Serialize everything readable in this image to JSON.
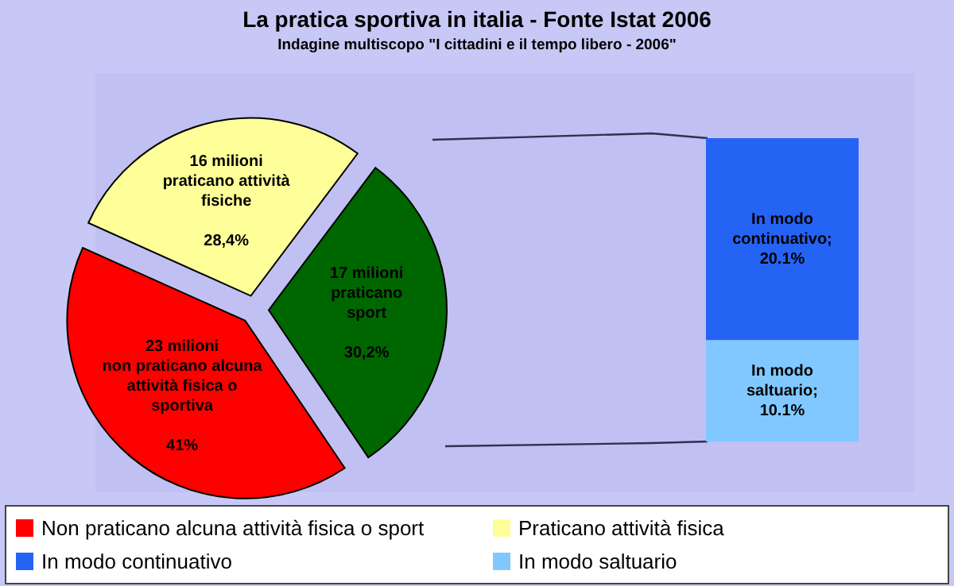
{
  "chart_data": [
    {
      "type": "pie",
      "title": "La pratica sportiva in italia - Fonte Istat 2006",
      "subtitle": "Indagine multiscopo \"I cittadini e il tempo libero - 2006\"",
      "categories": [
        "Non praticano alcuna attività fisica o sport",
        "Praticano attività fisica",
        null
      ],
      "values": [
        41,
        28.4,
        30.2
      ],
      "colors": [
        "#ff0000",
        "#ffff99",
        "#006600"
      ],
      "value_labels": [
        "23 milioni\nnon praticano alcuna\nattività fisica o\nsportiva\n\n41%",
        "16 milioni\npraticano attività\nfisiche\n\n28,4%",
        "17 milioni\npraticano\nsport\n\n30,2%"
      ],
      "legend": "bottom"
    },
    {
      "type": "bar",
      "stacked": true,
      "categories": [
        null
      ],
      "series": [
        {
          "name": "In modo saltuario",
          "color": "#80c8ff",
          "values": [
            10.1
          ],
          "value_labels": [
            "In modo\nsaltuario;\n10.1%"
          ]
        },
        {
          "name": "In modo continuativo",
          "color": "#2563f5",
          "values": [
            20.1
          ],
          "value_labels": [
            "In modo\ncontinuativo;\n20.1%"
          ]
        }
      ],
      "legend": "bottom"
    }
  ]
}
